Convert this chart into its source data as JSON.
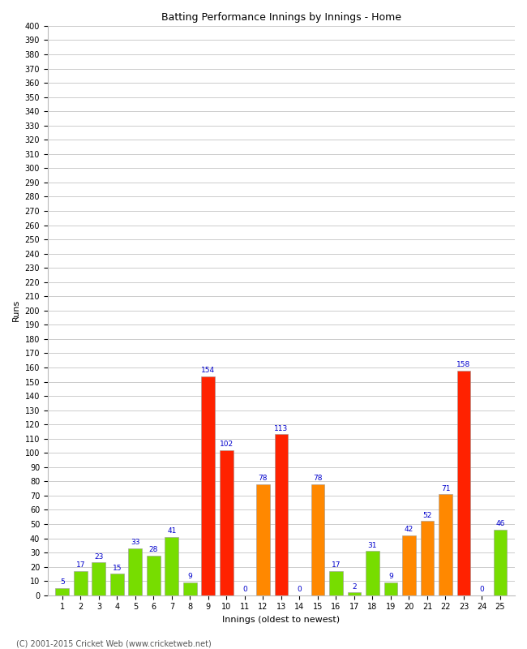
{
  "title": "Batting Performance Innings by Innings - Home",
  "xlabel": "Innings (oldest to newest)",
  "ylabel": "Runs",
  "innings": [
    1,
    2,
    3,
    4,
    5,
    6,
    7,
    8,
    9,
    10,
    11,
    12,
    13,
    14,
    15,
    16,
    17,
    18,
    19,
    20,
    21,
    22,
    23,
    24,
    25
  ],
  "values": [
    5,
    17,
    23,
    15,
    33,
    28,
    41,
    9,
    154,
    102,
    0,
    78,
    113,
    0,
    78,
    17,
    2,
    31,
    9,
    42,
    52,
    71,
    158,
    0,
    46
  ],
  "colors": [
    "#77dd00",
    "#77dd00",
    "#77dd00",
    "#77dd00",
    "#77dd00",
    "#77dd00",
    "#77dd00",
    "#77dd00",
    "#ff2200",
    "#ff2200",
    "#77dd00",
    "#ff8800",
    "#ff2200",
    "#ff8800",
    "#ff8800",
    "#77dd00",
    "#77dd00",
    "#77dd00",
    "#77dd00",
    "#ff8800",
    "#ff8800",
    "#ff8800",
    "#ff2200",
    "#ff2200",
    "#77dd00"
  ],
  "label_color": "#0000cc",
  "ylim": [
    0,
    400
  ],
  "yticks": [
    0,
    10,
    20,
    30,
    40,
    50,
    60,
    70,
    80,
    90,
    100,
    110,
    120,
    130,
    140,
    150,
    160,
    170,
    180,
    190,
    200,
    210,
    220,
    230,
    240,
    250,
    260,
    270,
    280,
    290,
    300,
    310,
    320,
    330,
    340,
    350,
    360,
    370,
    380,
    390,
    400
  ],
  "background_color": "#ffffff",
  "grid_color": "#cccccc",
  "footer": "(C) 2001-2015 Cricket Web (www.cricketweb.net)"
}
